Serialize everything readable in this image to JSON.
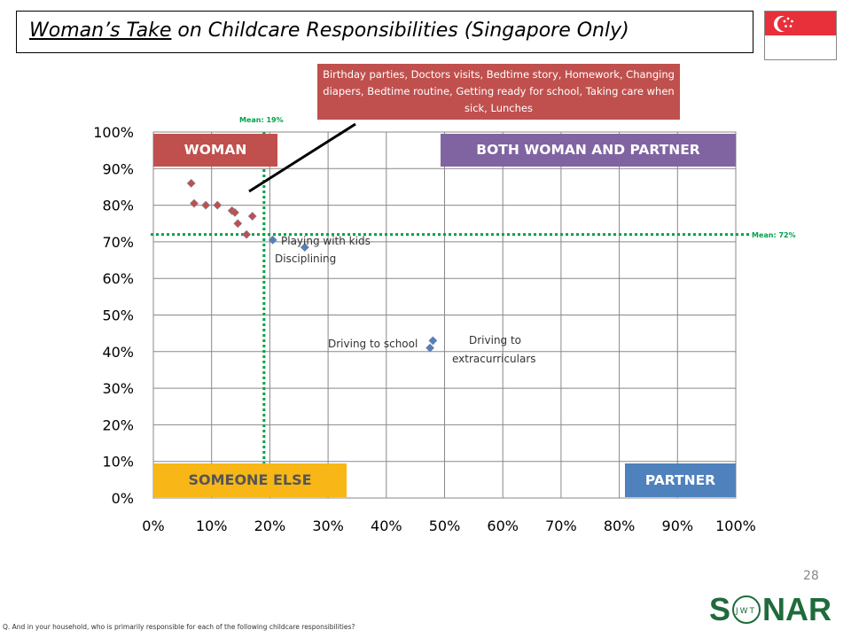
{
  "header": {
    "title_underlined": "Woman’s Take",
    "title_rest": " on Childcare Responsibilities (Singapore Only)"
  },
  "flag": {
    "icon": "singapore-flag-icon",
    "red": "#e7303a"
  },
  "callout": {
    "text": "Birthday parties, Doctors visits, Bedtime story, Homework, Changing diapers, Bedtime routine, Getting ready for school, Taking care when sick, Lunches"
  },
  "quadrants": {
    "woman": "WOMAN",
    "both": "BOTH WOMAN AND PARTNER",
    "someone_else": "SOMEONE ELSE",
    "partner": "PARTNER"
  },
  "chart_data": {
    "type": "scatter",
    "x_ticks": [
      "0%",
      "10%",
      "20%",
      "30%",
      "40%",
      "50%",
      "60%",
      "70%",
      "80%",
      "90%",
      "100%"
    ],
    "y_ticks": [
      "0%",
      "10%",
      "20%",
      "30%",
      "40%",
      "50%",
      "60%",
      "70%",
      "80%",
      "90%",
      "100%"
    ],
    "xlim": [
      0,
      100
    ],
    "ylim": [
      0,
      100
    ],
    "grid": true,
    "mean_x": {
      "value": 19,
      "label": "Mean: 19%"
    },
    "mean_y": {
      "value": 72,
      "label": "Mean: 72%"
    },
    "red_points": [
      {
        "x": 6.5,
        "y": 86
      },
      {
        "x": 7,
        "y": 80.5
      },
      {
        "x": 9,
        "y": 80
      },
      {
        "x": 11,
        "y": 80
      },
      {
        "x": 13.5,
        "y": 78.5
      },
      {
        "x": 14,
        "y": 78
      },
      {
        "x": 14.5,
        "y": 75
      },
      {
        "x": 16,
        "y": 72
      },
      {
        "x": 17,
        "y": 77
      }
    ],
    "blue_points": [
      {
        "x": 20.5,
        "y": 70.5,
        "label": "Playing with kids"
      },
      {
        "x": 26,
        "y": 68.5,
        "label": "Disciplining"
      },
      {
        "x": 48,
        "y": 43,
        "label": "Driving to school"
      },
      {
        "x": 47.5,
        "y": 41,
        "label": "Driving to extracurriculars"
      }
    ],
    "colors": {
      "red": "#c0504d",
      "blue": "#4f81bd",
      "mean": "#00a14b"
    }
  },
  "labels": {
    "playing": "Playing with kids",
    "disciplining": "Disciplining",
    "driving_school": "Driving to school",
    "driving_extra_1": "Driving to",
    "driving_extra_2": "extracurriculars"
  },
  "page_number": "28",
  "logo": {
    "text_left": "S",
    "text_right": "NAR",
    "inner": "JWT",
    "color": "#1f6b3b"
  },
  "footnote": "Q. And in your household, who is primarily responsible for each of the following childcare responsibilities?"
}
